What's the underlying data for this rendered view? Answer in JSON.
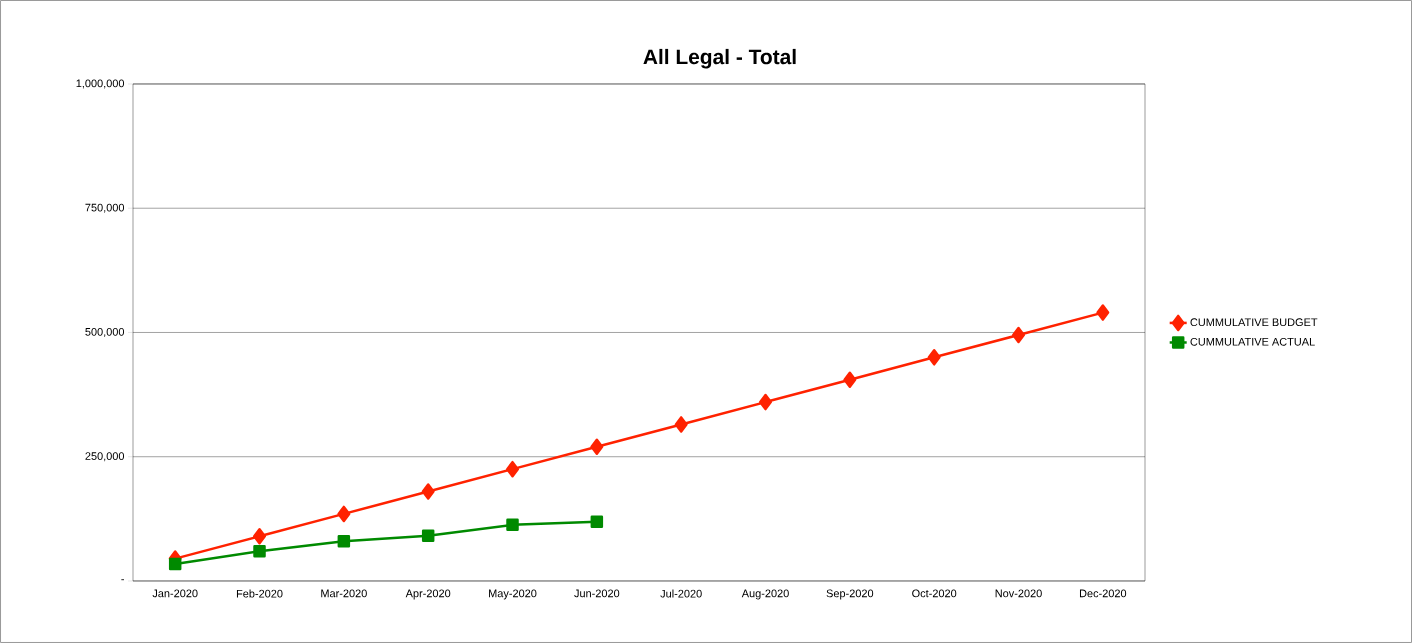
{
  "chart_data": {
    "type": "line",
    "title": "All Legal - Total",
    "categories": [
      "Jan-2020",
      "Feb-2020",
      "Mar-2020",
      "Apr-2020",
      "May-2020",
      "Jun-2020",
      "Jul-2020",
      "Aug-2020",
      "Sep-2020",
      "Oct-2020",
      "Nov-2020",
      "Dec-2020"
    ],
    "series": [
      {
        "name": "CUMMULATIVE BUDGET",
        "color": "#ff2200",
        "marker": "diamond",
        "values": [
          45000,
          90000,
          135000,
          180000,
          225000,
          270000,
          315000,
          360000,
          405000,
          450000,
          495000,
          540000
        ]
      },
      {
        "name": "CUMMULATIVE ACTUAL",
        "color": "#008a00",
        "marker": "square",
        "values": [
          34000,
          60000,
          80000,
          91000,
          113000,
          119000,
          null,
          null,
          null,
          null,
          null,
          null
        ]
      }
    ],
    "ylim": [
      0,
      1000000
    ],
    "yticks": [
      {
        "value": 0,
        "label": "-"
      },
      {
        "value": 250000,
        "label": "250,000"
      },
      {
        "value": 500000,
        "label": "500,000"
      },
      {
        "value": 750000,
        "label": "750,000"
      },
      {
        "value": 1000000,
        "label": "1,000,000"
      }
    ],
    "grid": "y",
    "legend": "right"
  }
}
